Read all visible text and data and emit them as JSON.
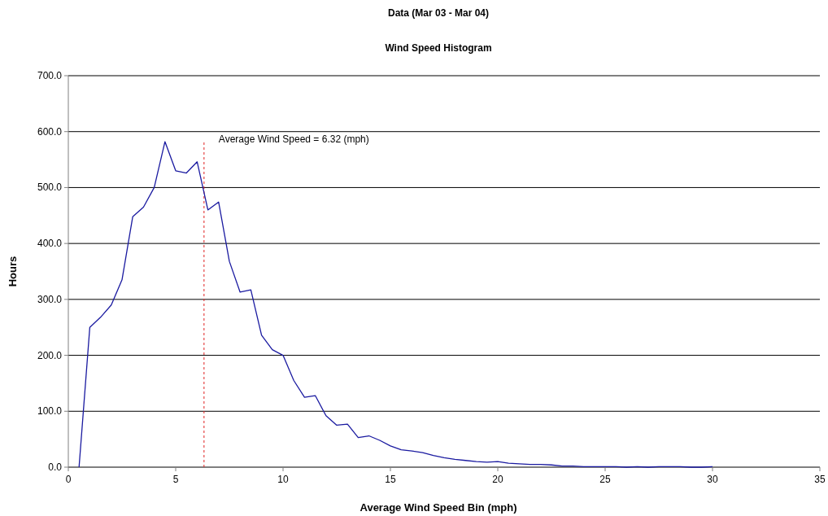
{
  "chart_data": {
    "type": "line",
    "title": "Data (Mar 03 - Mar 04)",
    "subtitle": "Wind Speed Histogram",
    "xlabel": "Average Wind Speed Bin (mph)",
    "ylabel": "Hours",
    "x": [
      0.5,
      1,
      1.5,
      2,
      2.5,
      3,
      3.5,
      4,
      4.5,
      5,
      5.5,
      6,
      6.5,
      7,
      7.5,
      8,
      8.5,
      9,
      9.5,
      10,
      10.5,
      11,
      11.5,
      12,
      12.5,
      13,
      13.5,
      14,
      14.5,
      15,
      15.5,
      16,
      16.5,
      17,
      17.5,
      18,
      18.5,
      19,
      19.5,
      20,
      20.5,
      21,
      21.5,
      22,
      22.5,
      23,
      23.5,
      24,
      24.5,
      25,
      25.5,
      26,
      26.5,
      27,
      27.5,
      28,
      28.5,
      29,
      29.5,
      30
    ],
    "series": [
      {
        "color": "#1a1aa0",
        "values": [
          0,
          250,
          268,
          290,
          335,
          448,
          465,
          500,
          582,
          530,
          526,
          546,
          460,
          474,
          368,
          313,
          317,
          236,
          210,
          200,
          155,
          125,
          128,
          92,
          75,
          77,
          53,
          56,
          48,
          38,
          31,
          29,
          26,
          21,
          17,
          14,
          12,
          10,
          9,
          10,
          7,
          6,
          5,
          5,
          4,
          2,
          2,
          1,
          1,
          1,
          1,
          0,
          1,
          0,
          1,
          1,
          1,
          0,
          0,
          1
        ]
      }
    ],
    "xlim": [
      0,
      35
    ],
    "xticks": [
      0,
      5,
      10,
      15,
      20,
      25,
      30,
      35
    ],
    "ylim": [
      0,
      700
    ],
    "yticks": [
      {
        "value": 0,
        "label": "0.0"
      },
      {
        "value": 100,
        "label": "100.0"
      },
      {
        "value": 200,
        "label": "200.0"
      },
      {
        "value": 300,
        "label": "300.0"
      },
      {
        "value": 400,
        "label": "400.0"
      },
      {
        "value": 500,
        "label": "500.0"
      },
      {
        "value": 600,
        "label": "600.0"
      },
      {
        "value": 700,
        "label": "700.0"
      }
    ],
    "ref_lines": [
      {
        "axis": "x",
        "value": 6.32,
        "label": "Average Wind Speed = 6.32 (mph)",
        "color": "#e02020",
        "line_style": "dashed"
      }
    ],
    "grid": "y",
    "marker": "none",
    "line_style": "solid"
  }
}
